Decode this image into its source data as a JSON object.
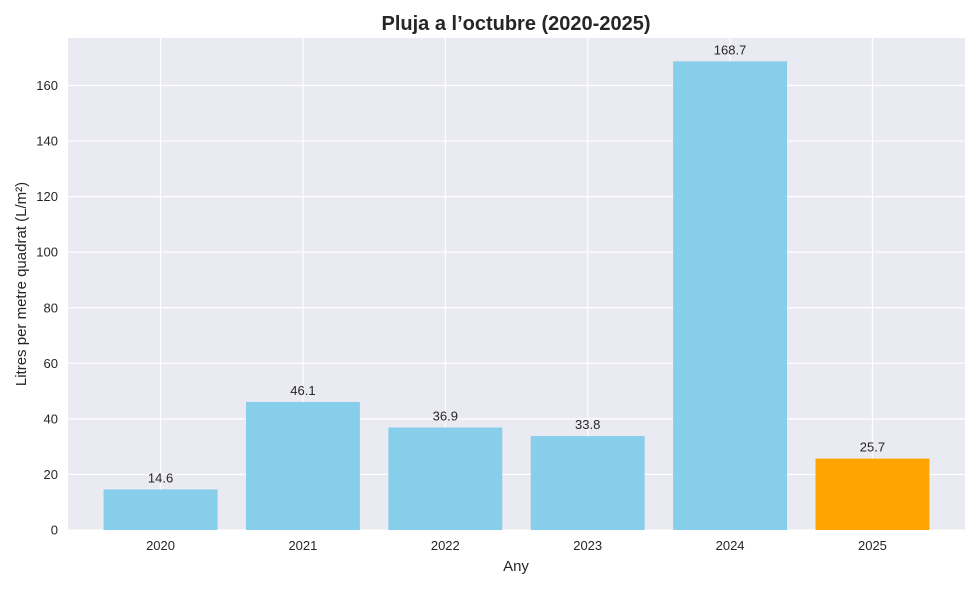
{
  "chart_data": {
    "type": "bar",
    "title": "Pluja a l’octubre (2020-2025)",
    "xlabel": "Any",
    "ylabel": "Litres per metre quadrat (L/m²)",
    "categories": [
      "2020",
      "2021",
      "2022",
      "2023",
      "2024",
      "2025"
    ],
    "values": [
      14.6,
      46.1,
      36.9,
      33.8,
      168.7,
      25.7
    ],
    "data_labels": [
      "14.6",
      "46.1",
      "36.9",
      "33.8",
      "168.7",
      "25.7"
    ],
    "bar_colors": [
      "#87CEEB",
      "#87CEEB",
      "#87CEEB",
      "#87CEEB",
      "#87CEEB",
      "#FFA500"
    ],
    "ylim": [
      0,
      177.1
    ],
    "yticks": [
      0,
      20,
      40,
      60,
      80,
      100,
      120,
      140,
      160
    ],
    "grid": true,
    "background_color": "#EAEAF2"
  }
}
